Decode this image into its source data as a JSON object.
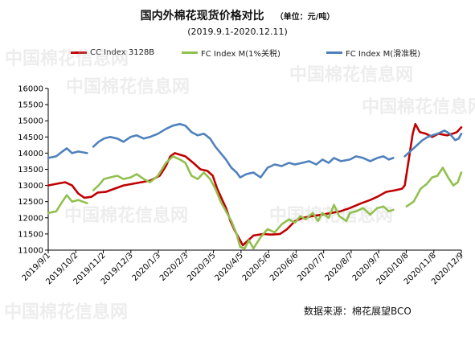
{
  "title": "国内外棉花现货价格对比",
  "unit_label": "（单位：元/吨）",
  "subtitle": "(2019.9.1-2020.12.11)",
  "source": "数据来源：棉花展望BCO",
  "watermark": "中国棉花信息网",
  "chart_data": {
    "type": "line",
    "title": "国内外棉花现货价格对比",
    "subtitle": "(2019.9.1-2020.12.11)",
    "xlabel": "",
    "ylabel": "",
    "x_range": [
      "2019-09-01",
      "2020-12-11"
    ],
    "ylim": [
      11000,
      16000
    ],
    "yticks": [
      11000,
      11500,
      12000,
      12500,
      13000,
      13500,
      14000,
      14500,
      15000,
      15500,
      16000
    ],
    "xticks": [
      "2019/9/1",
      "2019/10/2",
      "2019/11/2",
      "2019/12/3",
      "2020/1/3",
      "2020/2/3",
      "2020/3/5",
      "2020/4/5",
      "2020/5/6",
      "2020/6/6",
      "2020/7/7",
      "2020/8/7",
      "2020/9/7",
      "2020/10/8",
      "2020/11/8",
      "2020/12/9"
    ],
    "grid": false,
    "legend_position": "top",
    "series": [
      {
        "name": "CC Index 3128B",
        "color": "#c00000",
        "points": [
          [
            "2019-09-01",
            13000
          ],
          [
            "2019-09-10",
            13050
          ],
          [
            "2019-09-20",
            13100
          ],
          [
            "2019-09-28",
            13000
          ],
          [
            "2019-10-05",
            12750
          ],
          [
            "2019-10-12",
            12620
          ],
          [
            "2019-10-20",
            12650
          ],
          [
            "2019-10-27",
            12780
          ],
          [
            "2019-11-05",
            12800
          ],
          [
            "2019-11-15",
            12900
          ],
          [
            "2019-11-25",
            13000
          ],
          [
            "2019-12-05",
            13050
          ],
          [
            "2019-12-15",
            13100
          ],
          [
            "2019-12-25",
            13150
          ],
          [
            "2020-01-05",
            13300
          ],
          [
            "2020-01-12",
            13600
          ],
          [
            "2020-01-17",
            13900
          ],
          [
            "2020-01-22",
            14000
          ],
          [
            "2020-02-03",
            13900
          ],
          [
            "2020-02-12",
            13700
          ],
          [
            "2020-02-20",
            13500
          ],
          [
            "2020-02-28",
            13450
          ],
          [
            "2020-03-05",
            13300
          ],
          [
            "2020-03-10",
            12900
          ],
          [
            "2020-03-15",
            12600
          ],
          [
            "2020-03-20",
            12300
          ],
          [
            "2020-03-25",
            11900
          ],
          [
            "2020-03-30",
            11600
          ],
          [
            "2020-04-05",
            11300
          ],
          [
            "2020-04-08",
            11150
          ],
          [
            "2020-04-12",
            11250
          ],
          [
            "2020-04-20",
            11450
          ],
          [
            "2020-05-01",
            11500
          ],
          [
            "2020-05-10",
            11480
          ],
          [
            "2020-05-20",
            11500
          ],
          [
            "2020-05-28",
            11650
          ],
          [
            "2020-06-06",
            11900
          ],
          [
            "2020-06-15",
            12000
          ],
          [
            "2020-06-25",
            12050
          ],
          [
            "2020-07-07",
            12100
          ],
          [
            "2020-07-17",
            12150
          ],
          [
            "2020-07-27",
            12200
          ],
          [
            "2020-08-07",
            12300
          ],
          [
            "2020-08-20",
            12450
          ],
          [
            "2020-08-30",
            12550
          ],
          [
            "2020-09-07",
            12650
          ],
          [
            "2020-09-17",
            12800
          ],
          [
            "2020-09-27",
            12850
          ],
          [
            "2020-10-05",
            12900
          ],
          [
            "2020-10-08",
            13000
          ],
          [
            "2020-10-12",
            13700
          ],
          [
            "2020-10-17",
            14600
          ],
          [
            "2020-10-20",
            14900
          ],
          [
            "2020-10-25",
            14650
          ],
          [
            "2020-11-01",
            14600
          ],
          [
            "2020-11-08",
            14500
          ],
          [
            "2020-11-15",
            14600
          ],
          [
            "2020-11-25",
            14550
          ],
          [
            "2020-12-01",
            14600
          ],
          [
            "2020-12-06",
            14650
          ],
          [
            "2020-12-11",
            14800
          ]
        ]
      },
      {
        "name": "FC Index M(1%关税)",
        "color": "#92c050",
        "gaps_after": [
          "2019-10-15",
          "2020-09-25"
        ],
        "points": [
          [
            "2019-09-01",
            12150
          ],
          [
            "2019-09-10",
            12200
          ],
          [
            "2019-09-17",
            12500
          ],
          [
            "2019-09-22",
            12700
          ],
          [
            "2019-09-28",
            12500
          ],
          [
            "2019-10-05",
            12550
          ],
          [
            "2019-10-15",
            12450
          ],
          [
            "2019-10-22",
            12850
          ],
          [
            "2019-10-28",
            13000
          ],
          [
            "2019-11-03",
            13200
          ],
          [
            "2019-11-10",
            13250
          ],
          [
            "2019-11-18",
            13300
          ],
          [
            "2019-11-25",
            13200
          ],
          [
            "2019-12-03",
            13250
          ],
          [
            "2019-12-10",
            13350
          ],
          [
            "2019-12-18",
            13200
          ],
          [
            "2019-12-25",
            13100
          ],
          [
            "2020-01-03",
            13300
          ],
          [
            "2020-01-12",
            13700
          ],
          [
            "2020-01-20",
            13900
          ],
          [
            "2020-01-28",
            13800
          ],
          [
            "2020-02-03",
            13700
          ],
          [
            "2020-02-10",
            13300
          ],
          [
            "2020-02-17",
            13200
          ],
          [
            "2020-02-24",
            13400
          ],
          [
            "2020-03-02",
            13200
          ],
          [
            "2020-03-08",
            12900
          ],
          [
            "2020-03-14",
            12500
          ],
          [
            "2020-03-20",
            12200
          ],
          [
            "2020-03-26",
            11900
          ],
          [
            "2020-04-01",
            11500
          ],
          [
            "2020-04-05",
            11100
          ],
          [
            "2020-04-10",
            11050
          ],
          [
            "2020-04-15",
            11300
          ],
          [
            "2020-04-20",
            11050
          ],
          [
            "2020-04-28",
            11400
          ],
          [
            "2020-05-06",
            11650
          ],
          [
            "2020-05-14",
            11550
          ],
          [
            "2020-05-22",
            11800
          ],
          [
            "2020-05-30",
            11950
          ],
          [
            "2020-06-06",
            11850
          ],
          [
            "2020-06-12",
            12050
          ],
          [
            "2020-06-18",
            11950
          ],
          [
            "2020-06-26",
            12150
          ],
          [
            "2020-07-02",
            11900
          ],
          [
            "2020-07-07",
            12150
          ],
          [
            "2020-07-14",
            12000
          ],
          [
            "2020-07-20",
            12400
          ],
          [
            "2020-07-26",
            12050
          ],
          [
            "2020-08-03",
            11900
          ],
          [
            "2020-08-07",
            12150
          ],
          [
            "2020-08-14",
            12200
          ],
          [
            "2020-08-22",
            12300
          ],
          [
            "2020-08-30",
            12100
          ],
          [
            "2020-09-07",
            12300
          ],
          [
            "2020-09-14",
            12350
          ],
          [
            "2020-09-20",
            12200
          ],
          [
            "2020-09-25",
            12250
          ],
          [
            "2020-10-10",
            12350
          ],
          [
            "2020-10-18",
            12500
          ],
          [
            "2020-10-26",
            12900
          ],
          [
            "2020-11-02",
            13050
          ],
          [
            "2020-11-08",
            13250
          ],
          [
            "2020-11-14",
            13300
          ],
          [
            "2020-11-20",
            13550
          ],
          [
            "2020-11-26",
            13250
          ],
          [
            "2020-12-02",
            13000
          ],
          [
            "2020-12-07",
            13100
          ],
          [
            "2020-12-11",
            13400
          ]
        ]
      },
      {
        "name": "FC Index M(滑准税)",
        "color": "#4f81bd",
        "gaps_after": [
          "2019-10-15",
          "2020-09-25"
        ],
        "points": [
          [
            "2019-09-01",
            13850
          ],
          [
            "2019-09-10",
            13900
          ],
          [
            "2019-09-17",
            14050
          ],
          [
            "2019-09-22",
            14150
          ],
          [
            "2019-09-28",
            14000
          ],
          [
            "2019-10-05",
            14050
          ],
          [
            "2019-10-15",
            14000
          ],
          [
            "2019-10-22",
            14200
          ],
          [
            "2019-10-28",
            14350
          ],
          [
            "2019-11-03",
            14450
          ],
          [
            "2019-11-10",
            14500
          ],
          [
            "2019-11-18",
            14450
          ],
          [
            "2019-11-25",
            14350
          ],
          [
            "2019-12-03",
            14500
          ],
          [
            "2019-12-10",
            14550
          ],
          [
            "2019-12-18",
            14450
          ],
          [
            "2019-12-25",
            14500
          ],
          [
            "2020-01-03",
            14600
          ],
          [
            "2020-01-12",
            14750
          ],
          [
            "2020-01-20",
            14850
          ],
          [
            "2020-01-28",
            14900
          ],
          [
            "2020-02-03",
            14850
          ],
          [
            "2020-02-10",
            14650
          ],
          [
            "2020-02-17",
            14550
          ],
          [
            "2020-02-24",
            14600
          ],
          [
            "2020-03-02",
            14450
          ],
          [
            "2020-03-08",
            14200
          ],
          [
            "2020-03-14",
            14000
          ],
          [
            "2020-03-20",
            13800
          ],
          [
            "2020-03-26",
            13550
          ],
          [
            "2020-04-01",
            13400
          ],
          [
            "2020-04-05",
            13250
          ],
          [
            "2020-04-12",
            13350
          ],
          [
            "2020-04-20",
            13400
          ],
          [
            "2020-04-28",
            13250
          ],
          [
            "2020-05-06",
            13550
          ],
          [
            "2020-05-14",
            13650
          ],
          [
            "2020-05-22",
            13600
          ],
          [
            "2020-05-30",
            13700
          ],
          [
            "2020-06-06",
            13650
          ],
          [
            "2020-06-14",
            13700
          ],
          [
            "2020-06-22",
            13750
          ],
          [
            "2020-06-30",
            13650
          ],
          [
            "2020-07-07",
            13800
          ],
          [
            "2020-07-14",
            13700
          ],
          [
            "2020-07-20",
            13850
          ],
          [
            "2020-07-28",
            13750
          ],
          [
            "2020-08-07",
            13800
          ],
          [
            "2020-08-14",
            13900
          ],
          [
            "2020-08-22",
            13850
          ],
          [
            "2020-08-30",
            13750
          ],
          [
            "2020-09-07",
            13850
          ],
          [
            "2020-09-14",
            13900
          ],
          [
            "2020-09-20",
            13800
          ],
          [
            "2020-09-25",
            13850
          ],
          [
            "2020-10-08",
            13900
          ],
          [
            "2020-10-14",
            14050
          ],
          [
            "2020-10-20",
            14200
          ],
          [
            "2020-10-28",
            14400
          ],
          [
            "2020-11-03",
            14500
          ],
          [
            "2020-11-08",
            14550
          ],
          [
            "2020-11-14",
            14600
          ],
          [
            "2020-11-22",
            14700
          ],
          [
            "2020-11-28",
            14600
          ],
          [
            "2020-12-04",
            14400
          ],
          [
            "2020-12-08",
            14450
          ],
          [
            "2020-12-11",
            14600
          ]
        ]
      }
    ]
  }
}
